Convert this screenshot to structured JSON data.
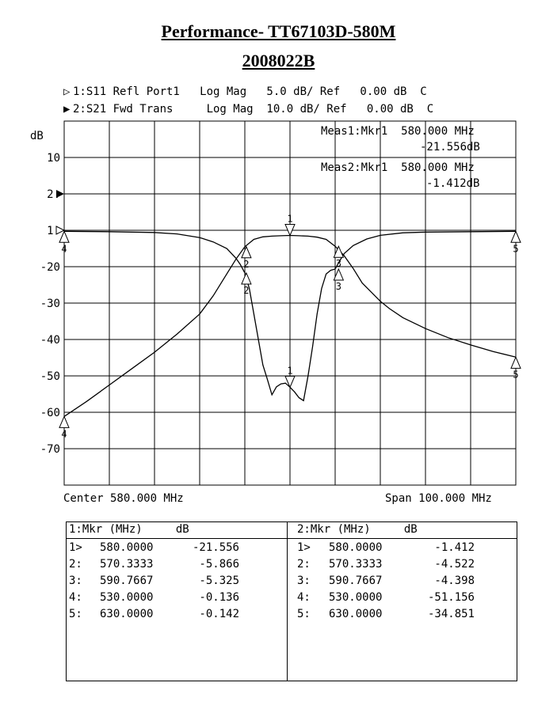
{
  "title": "Performance- TT67103D-580M",
  "subtitle": "2008022B",
  "trace_headers": [
    {
      "marker": "▷",
      "text": "1:S11 Refl Port1   Log Mag   5.0 dB/ Ref   0.00 dB  C"
    },
    {
      "marker": "▶",
      "text": "2:S21 Fwd Trans     Log Mag  10.0 dB/ Ref   0.00 dB  C"
    }
  ],
  "meas": [
    {
      "line1": "Meas1:Mkr1  580.000 MHz",
      "line2": "-21.556dB"
    },
    {
      "line1": "Meas2:Mkr1  580.000 MHz",
      "line2": "-1.412dB"
    }
  ],
  "footer": {
    "center": "Center 580.000 MHz",
    "span": "Span 100.000 MHz"
  },
  "chart_data": {
    "type": "line",
    "ylabel": "dB",
    "y_tick_labels": [
      "10",
      "2:",
      "1:",
      "-20",
      "-30",
      "-40",
      "-50",
      "-60",
      "-70"
    ],
    "x_range_mhz": [
      530,
      630
    ],
    "grid": true,
    "series": [
      {
        "name": "1:S11 Refl Port1",
        "scale_db_per_div": 5.0,
        "ref_db": 0.0,
        "x": [
          530,
          540,
          550,
          555,
          560,
          563,
          566,
          568,
          569,
          570,
          571,
          572,
          573,
          574,
          575,
          576,
          577,
          578,
          579,
          580,
          581,
          582,
          583,
          584,
          585,
          586,
          587,
          588,
          589,
          590,
          591,
          592,
          594,
          597,
          600,
          605,
          610,
          620,
          630
        ],
        "y": [
          -0.136,
          -0.2,
          -0.3,
          -0.5,
          -1.0,
          -1.6,
          -2.5,
          -3.8,
          -4.7,
          -5.866,
          -8.0,
          -11.5,
          -15.0,
          -18.5,
          -20.5,
          -22.6,
          -21.5,
          -21.1,
          -21.0,
          -21.556,
          -22.2,
          -23.0,
          -23.4,
          -20.0,
          -16.0,
          -11.5,
          -8.0,
          -6.0,
          -5.5,
          -5.325,
          -4.2,
          -3.2,
          -2.1,
          -1.2,
          -0.7,
          -0.35,
          -0.25,
          -0.2,
          -0.142
        ]
      },
      {
        "name": "2:S21 Fwd Trans",
        "scale_db_per_div": 10.0,
        "ref_db": 0.0,
        "x": [
          530,
          535,
          540,
          545,
          550,
          555,
          560,
          563,
          566,
          568,
          570,
          572,
          574,
          576,
          578,
          580,
          582,
          584,
          586,
          588,
          590,
          592,
          594,
          596,
          598,
          600,
          602,
          605,
          610,
          615,
          620,
          625,
          630
        ],
        "y": [
          -51.156,
          -47.0,
          -42.5,
          -38.0,
          -33.5,
          -28.5,
          -23.0,
          -18.0,
          -12.0,
          -8.0,
          -4.522,
          -2.5,
          -1.8,
          -1.6,
          -1.5,
          -1.412,
          -1.5,
          -1.6,
          -1.9,
          -2.5,
          -4.398,
          -7.0,
          -10.5,
          -14.5,
          -17.0,
          -19.5,
          -21.5,
          -24.0,
          -27.0,
          -29.5,
          -31.5,
          -33.3,
          -34.851
        ]
      }
    ],
    "markers": [
      {
        "trace": "1",
        "items": [
          {
            "id": "1>",
            "mhz": "580.0000",
            "db": "-21.556"
          },
          {
            "id": "2:",
            "mhz": "570.3333",
            "db": "-5.866"
          },
          {
            "id": "3:",
            "mhz": "590.7667",
            "db": "-5.325"
          },
          {
            "id": "4:",
            "mhz": "530.0000",
            "db": "-0.136"
          },
          {
            "id": "5:",
            "mhz": "630.0000",
            "db": "-0.142"
          }
        ]
      },
      {
        "trace": "2",
        "items": [
          {
            "id": "1>",
            "mhz": "580.0000",
            "db": "-1.412"
          },
          {
            "id": "2:",
            "mhz": "570.3333",
            "db": "-4.522"
          },
          {
            "id": "3:",
            "mhz": "590.7667",
            "db": "-4.398"
          },
          {
            "id": "4:",
            "mhz": "530.0000",
            "db": "-51.156"
          },
          {
            "id": "5:",
            "mhz": "630.0000",
            "db": "-34.851"
          }
        ]
      }
    ]
  },
  "table": {
    "col1_header": "1:Mkr (MHz)     dB",
    "col2_header": "2:Mkr (MHz)     dB"
  }
}
